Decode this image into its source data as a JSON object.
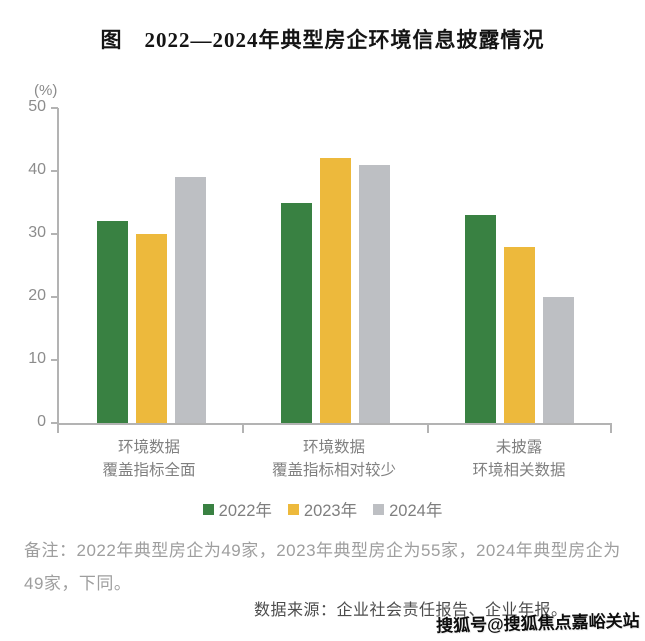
{
  "title": "图　2022—2024年典型房企环境信息披露情况",
  "chart_data": {
    "type": "bar",
    "title": "图 2022—2024年典型房企环境信息披露情况",
    "unit_label": "(%)",
    "categories": [
      "环境数据\n覆盖指标全面",
      "环境数据\n覆盖指标相对较少",
      "未披露\n环境相关数据"
    ],
    "series": [
      {
        "name": "2022年",
        "color": "#398142",
        "values": [
          32,
          35,
          33
        ]
      },
      {
        "name": "2023年",
        "color": "#edb93c",
        "values": [
          30,
          42,
          28
        ]
      },
      {
        "name": "2024年",
        "color": "#bdbfc3",
        "values": [
          39,
          41,
          20
        ]
      }
    ],
    "ylim": [
      0,
      50
    ],
    "yticks": [
      0,
      10,
      20,
      30,
      40,
      50
    ],
    "xlabel": "",
    "ylabel": "(%)",
    "grid": false,
    "legend_position": "bottom"
  },
  "note": "备注：2022年典型房企为49家，2023年典型房企为55家，2024年典型房企为49家，下同。",
  "source": "数据来源：企业社会责任报告、企业年报。",
  "watermark": "搜狐号@搜狐焦点嘉峪关站",
  "colors": {
    "axis": "#b3b3b3",
    "tick_text": "#8c8c8c",
    "category_text": "#808080",
    "legend_text": "#7f7f7f",
    "note_text": "#9e9e9e",
    "source_text": "#4c4c4c",
    "series_2022": "#398142",
    "series_2023": "#edb93c",
    "series_2024": "#bdbfc3"
  }
}
